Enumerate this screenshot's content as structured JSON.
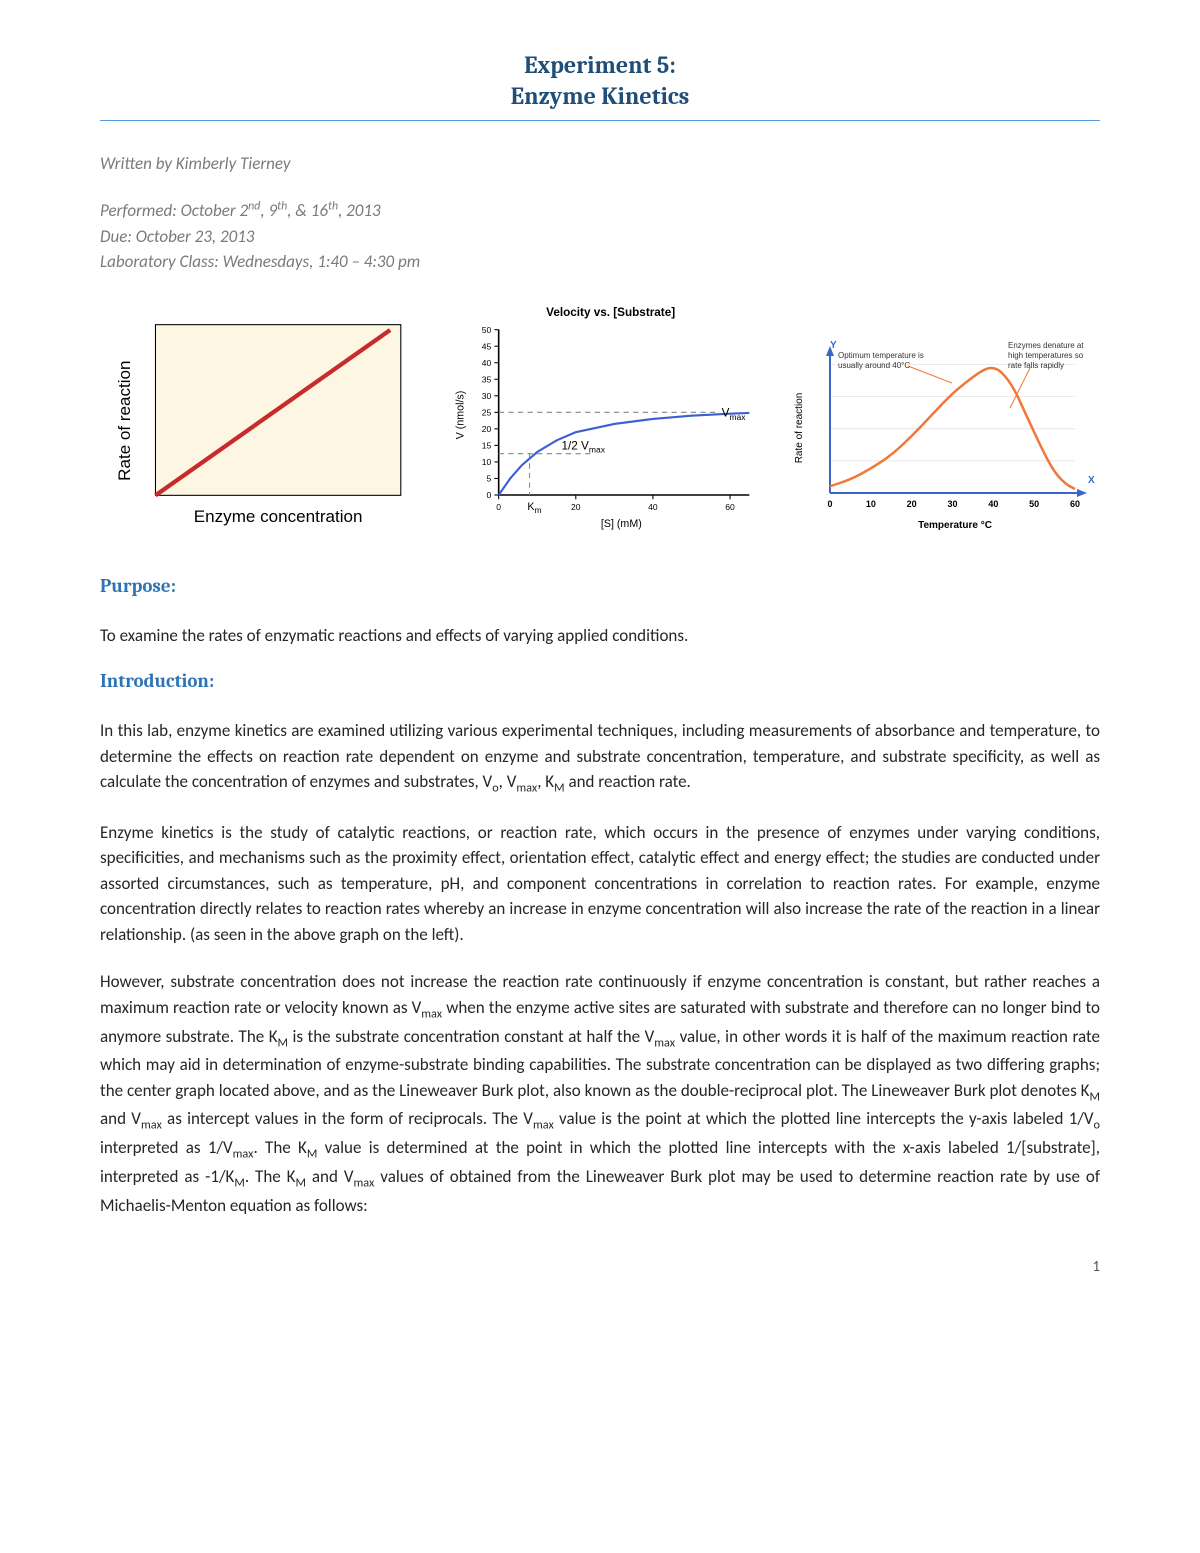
{
  "header": {
    "title_l1": "Experiment 5:",
    "title_l2": "Enzyme Kinetics",
    "title_color": "#1f4e79",
    "rule_color": "#5b9bd5"
  },
  "byline": "Written by Kimberly Tierney",
  "meta": {
    "performed_prefix": "Performed: October 2",
    "performed_mid1": ", 9",
    "performed_mid2": ", & 16",
    "performed_suffix": ", 2013",
    "due": "Due: October 23, 2013",
    "class": "Laboratory Class: Wednesdays, 1:40 – 4:30 pm"
  },
  "chart1": {
    "type": "line",
    "bg_color": "#fdf6e3",
    "border_color": "#000000",
    "line_color": "#c82b2b",
    "line_width": 4,
    "xlabel": "Enzyme concentration",
    "ylabel": "Rate of reaction",
    "label_fontsize": 14,
    "points": [
      [
        0,
        0
      ],
      [
        100,
        100
      ]
    ]
  },
  "chart2": {
    "type": "line",
    "title": "Velocity vs. [Substrate]",
    "title_fontsize": 10,
    "line_color": "#3c5fd1",
    "axis_color": "#000000",
    "grid_color": "#aaaaaa",
    "xlabel": "[S] (mM)",
    "ylabel": "V (nmol/s)",
    "label_fontsize": 8,
    "ylim": [
      0,
      50
    ],
    "yticks": [
      0,
      5,
      10,
      15,
      20,
      25,
      30,
      35,
      40,
      45,
      50
    ],
    "xlim": [
      0,
      65
    ],
    "xticks": [
      0,
      20,
      40,
      60
    ],
    "vmax_line_y": 25,
    "half_vmax_line_y": 12.5,
    "vmax_label": "V",
    "vmax_sub": "max",
    "half_vmax_label": "1/2 V",
    "half_vmax_sub": "max",
    "km_label": "K",
    "km_sub": "m",
    "km_x": 8,
    "curve": [
      [
        0,
        0
      ],
      [
        3,
        5
      ],
      [
        6,
        9
      ],
      [
        10,
        13
      ],
      [
        15,
        16.5
      ],
      [
        20,
        19
      ],
      [
        30,
        21.5
      ],
      [
        40,
        23
      ],
      [
        50,
        24
      ],
      [
        60,
        24.6
      ],
      [
        65,
        24.8
      ]
    ]
  },
  "chart3": {
    "type": "line",
    "line_color": "#f07838",
    "line_width": 3,
    "axis_color": "#3a66c9",
    "grid_color": "#cccccc",
    "xlabel": "Temperature °C",
    "ylabel": "Rate of reaction",
    "label_fontsize": 8,
    "xlim": [
      0,
      60
    ],
    "xticks": [
      0,
      10,
      20,
      30,
      40,
      50,
      60
    ],
    "annot1_l1": "Optimum temperature is",
    "annot1_l2": "usually around 40°C",
    "annot2_l1": "Enzymes denature at",
    "annot2_l2": "high temperatures so",
    "annot2_l3": "rate falls rapidly",
    "y_axis_label": "Y",
    "x_axis_label": "X",
    "curve": [
      [
        0,
        5
      ],
      [
        5,
        10
      ],
      [
        10,
        18
      ],
      [
        15,
        28
      ],
      [
        20,
        42
      ],
      [
        25,
        58
      ],
      [
        30,
        74
      ],
      [
        35,
        86
      ],
      [
        38,
        92
      ],
      [
        40,
        93
      ],
      [
        42,
        90
      ],
      [
        45,
        78
      ],
      [
        48,
        58
      ],
      [
        52,
        32
      ],
      [
        55,
        15
      ],
      [
        58,
        6
      ],
      [
        60,
        3
      ]
    ]
  },
  "sections": {
    "purpose_h": "Purpose:",
    "purpose_p": "To examine the rates of enzymatic reactions and effects of varying applied conditions.",
    "intro_h": "Introduction:",
    "intro_p1_a": "In this lab, enzyme kinetics are examined utilizing various experimental techniques, including measurements of absorbance and temperature, to determine the effects on reaction rate dependent on enzyme and substrate concentration, temperature, and substrate specificity, as well as calculate the concentration of enzymes and substrates, V",
    "intro_p1_b": ", V",
    "intro_p1_c": ", K",
    "intro_p1_d": " and reaction rate.",
    "intro_p2": "Enzyme kinetics is the study of catalytic reactions, or reaction rate, which occurs in the presence of enzymes under varying conditions, specificities, and mechanisms such as the proximity effect, orientation effect, catalytic effect and energy effect; the studies are conducted under assorted circumstances, such as temperature, pH, and component concentrations in correlation to reaction rates. For example, enzyme concentration directly relates to reaction rates whereby an increase in enzyme concentration will also increase the rate of the reaction in a linear relationship. (as seen in the above graph on the left).",
    "intro_p3_a": "However, substrate concentration does not increase the reaction rate continuously if enzyme concentration is constant, but rather reaches a maximum reaction rate or velocity known as V",
    "intro_p3_b": " when the enzyme active sites are saturated with substrate and therefore can no longer bind to anymore substrate. The K",
    "intro_p3_c": " is the substrate concentration constant at half the V",
    "intro_p3_d": " value, in other words it is half of the maximum reaction rate which may aid in determination of enzyme-substrate binding capabilities. The substrate concentration can be displayed as two differing graphs; the center graph located above, and as the Lineweaver Burk plot, also known as the double-reciprocal plot. The Lineweaver Burk plot denotes K",
    "intro_p3_e": " and V",
    "intro_p3_f": " as intercept values in the form of reciprocals. The V",
    "intro_p3_g": " value is the point at which the plotted line intercepts the y-axis labeled 1/V",
    "intro_p3_h": " interpreted as 1/V",
    "intro_p3_i": ". The K",
    "intro_p3_j": " value is determined at the point in which the plotted line intercepts with the x-axis labeled 1/[substrate], interpreted as -1/K",
    "intro_p3_k": ". The K",
    "intro_p3_l": " and V",
    "intro_p3_m": " values of obtained from the Lineweaver Burk plot may be used to determine reaction rate by use of Michaelis-Menton equation as follows:",
    "sub_o": "o",
    "sub_max": "max",
    "sub_M": "M"
  },
  "pagenum": "1"
}
